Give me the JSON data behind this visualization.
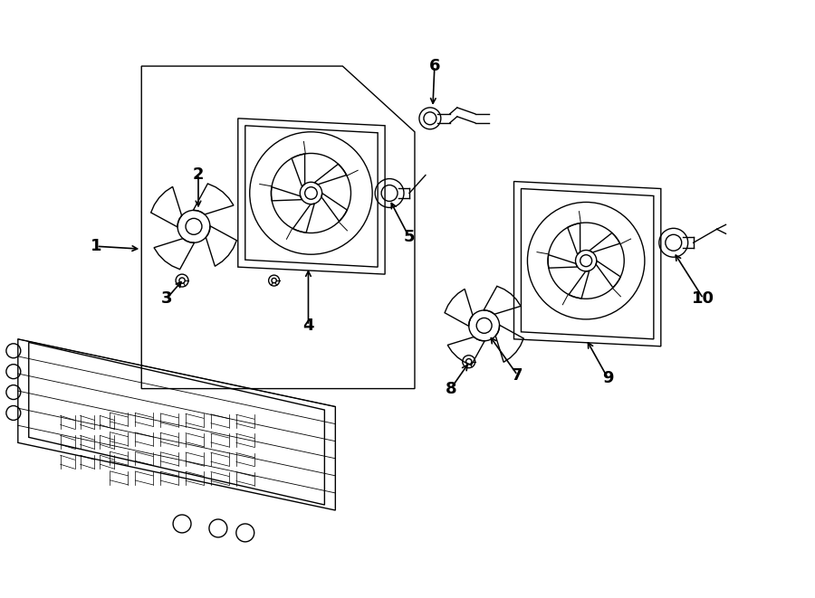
{
  "bg_color": "#ffffff",
  "line_color": "#000000",
  "lw": 1.0,
  "fig_width": 9.0,
  "fig_height": 6.61
}
